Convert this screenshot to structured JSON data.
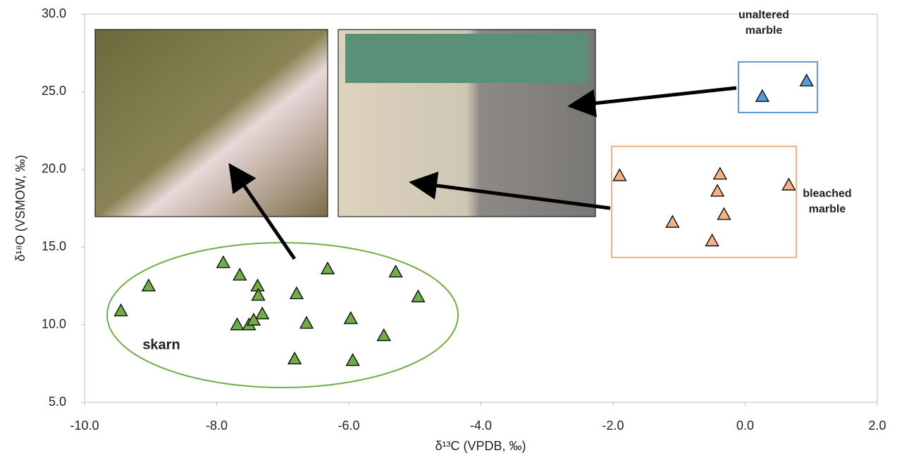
{
  "chart_data": {
    "type": "scatter",
    "xlabel": "δ¹³C (VPDB, ‰)",
    "ylabel": "δ¹⁸O (VSMOW, ‰)",
    "xlim": [
      -10,
      2
    ],
    "xticks": [
      {
        "value": -10,
        "label": "-10.0"
      },
      {
        "value": -8,
        "label": "-8.0"
      },
      {
        "value": -6,
        "label": "-6.0"
      },
      {
        "value": -4,
        "label": "-4.0"
      },
      {
        "value": -2,
        "label": "-2.0"
      },
      {
        "value": 0,
        "label": "0.0"
      },
      {
        "value": 2,
        "label": "2.0"
      }
    ],
    "ylim": [
      5,
      30
    ],
    "yticks": [
      {
        "value": 5,
        "label": "5.0"
      },
      {
        "value": 10,
        "label": "10.0"
      },
      {
        "value": 15,
        "label": "15.0"
      },
      {
        "value": 20,
        "label": "20.0"
      },
      {
        "value": 25,
        "label": "25.0"
      },
      {
        "value": 30,
        "label": "30.0"
      }
    ],
    "series": [
      {
        "color": "#70ad47",
        "x": [
          -9.45,
          -9.03,
          -7.9,
          -7.65,
          -7.38,
          -7.37,
          -7.31,
          -7.69,
          -7.51,
          -7.44,
          -6.79,
          -6.82,
          -6.64,
          -6.32,
          -5.97,
          -5.94,
          -5.47,
          -5.29,
          -4.95
        ],
        "values": [
          10.9,
          12.5,
          14.0,
          13.2,
          12.5,
          11.9,
          10.7,
          10.0,
          10.0,
          10.3,
          12.0,
          7.8,
          10.1,
          13.6,
          10.4,
          7.7,
          9.3,
          13.4,
          11.8
        ]
      },
      {
        "color": "#f4b183",
        "x": [
          -1.9,
          -1.1,
          -0.38,
          -0.42,
          -0.32,
          -0.5,
          0.66
        ],
        "values": [
          19.6,
          16.6,
          19.7,
          18.6,
          17.1,
          15.4,
          19.0
        ]
      },
      {
        "color": "#5b9bd5",
        "x": [
          0.26,
          0.93
        ],
        "values": [
          24.7,
          25.7
        ]
      }
    ],
    "annotations": [
      [
        "unaltered",
        "marble"
      ],
      [
        "bleached",
        "marble"
      ],
      [
        "skarn"
      ]
    ]
  }
}
